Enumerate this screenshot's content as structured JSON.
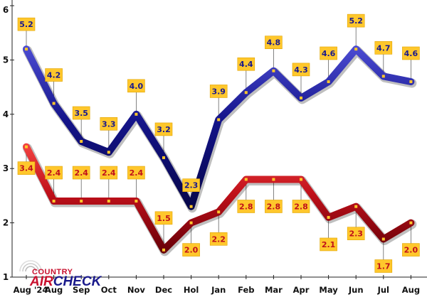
{
  "chart_data": {
    "type": "line",
    "title": "",
    "xlabel": "",
    "ylabel": "",
    "categories": [
      "Aug '24",
      "Aug",
      "Sep",
      "Oct",
      "Nov",
      "Dec",
      "Hol",
      "Jan",
      "Feb",
      "Mar",
      "Apr",
      "May",
      "Jun",
      "Jul",
      "Aug"
    ],
    "ylim": [
      1,
      6
    ],
    "yticks": [
      "1",
      "2",
      "3",
      "4",
      "5",
      "6"
    ],
    "series": [
      {
        "name": "",
        "color": "#1a1a8c",
        "values": [
          5.2,
          4.2,
          3.5,
          3.3,
          4.0,
          3.2,
          2.3,
          3.9,
          4.4,
          4.8,
          4.3,
          4.6,
          5.2,
          4.7,
          4.6
        ],
        "labels": [
          "5.2",
          "4.2",
          "3.5",
          "3.3",
          "4.0",
          "3.2",
          "2.3",
          "3.9",
          "4.4",
          "4.8",
          "4.3",
          "4.6",
          "5.2",
          "4.7",
          "4.6"
        ]
      },
      {
        "name": "",
        "color": "#c0101a",
        "values": [
          3.4,
          2.4,
          2.4,
          2.4,
          2.4,
          1.5,
          2.0,
          2.2,
          2.8,
          2.8,
          2.8,
          2.1,
          2.3,
          1.7,
          2.0
        ],
        "labels": [
          "3.4",
          "2.4",
          "2.4",
          "2.4",
          "2.4",
          "1.5",
          "2.0",
          "2.2",
          "2.8",
          "2.8",
          "2.8",
          "2.1",
          "2.3",
          "1.7",
          "2.0"
        ]
      }
    ],
    "label_box_color": "#ffc72c",
    "grid": false
  },
  "logo": {
    "top": "COUNTRY",
    "left": "AIR",
    "right": "CHECK",
    "colors": {
      "top": "#c8102e",
      "left": "#c8102e",
      "right": "#1a1a8c"
    }
  }
}
